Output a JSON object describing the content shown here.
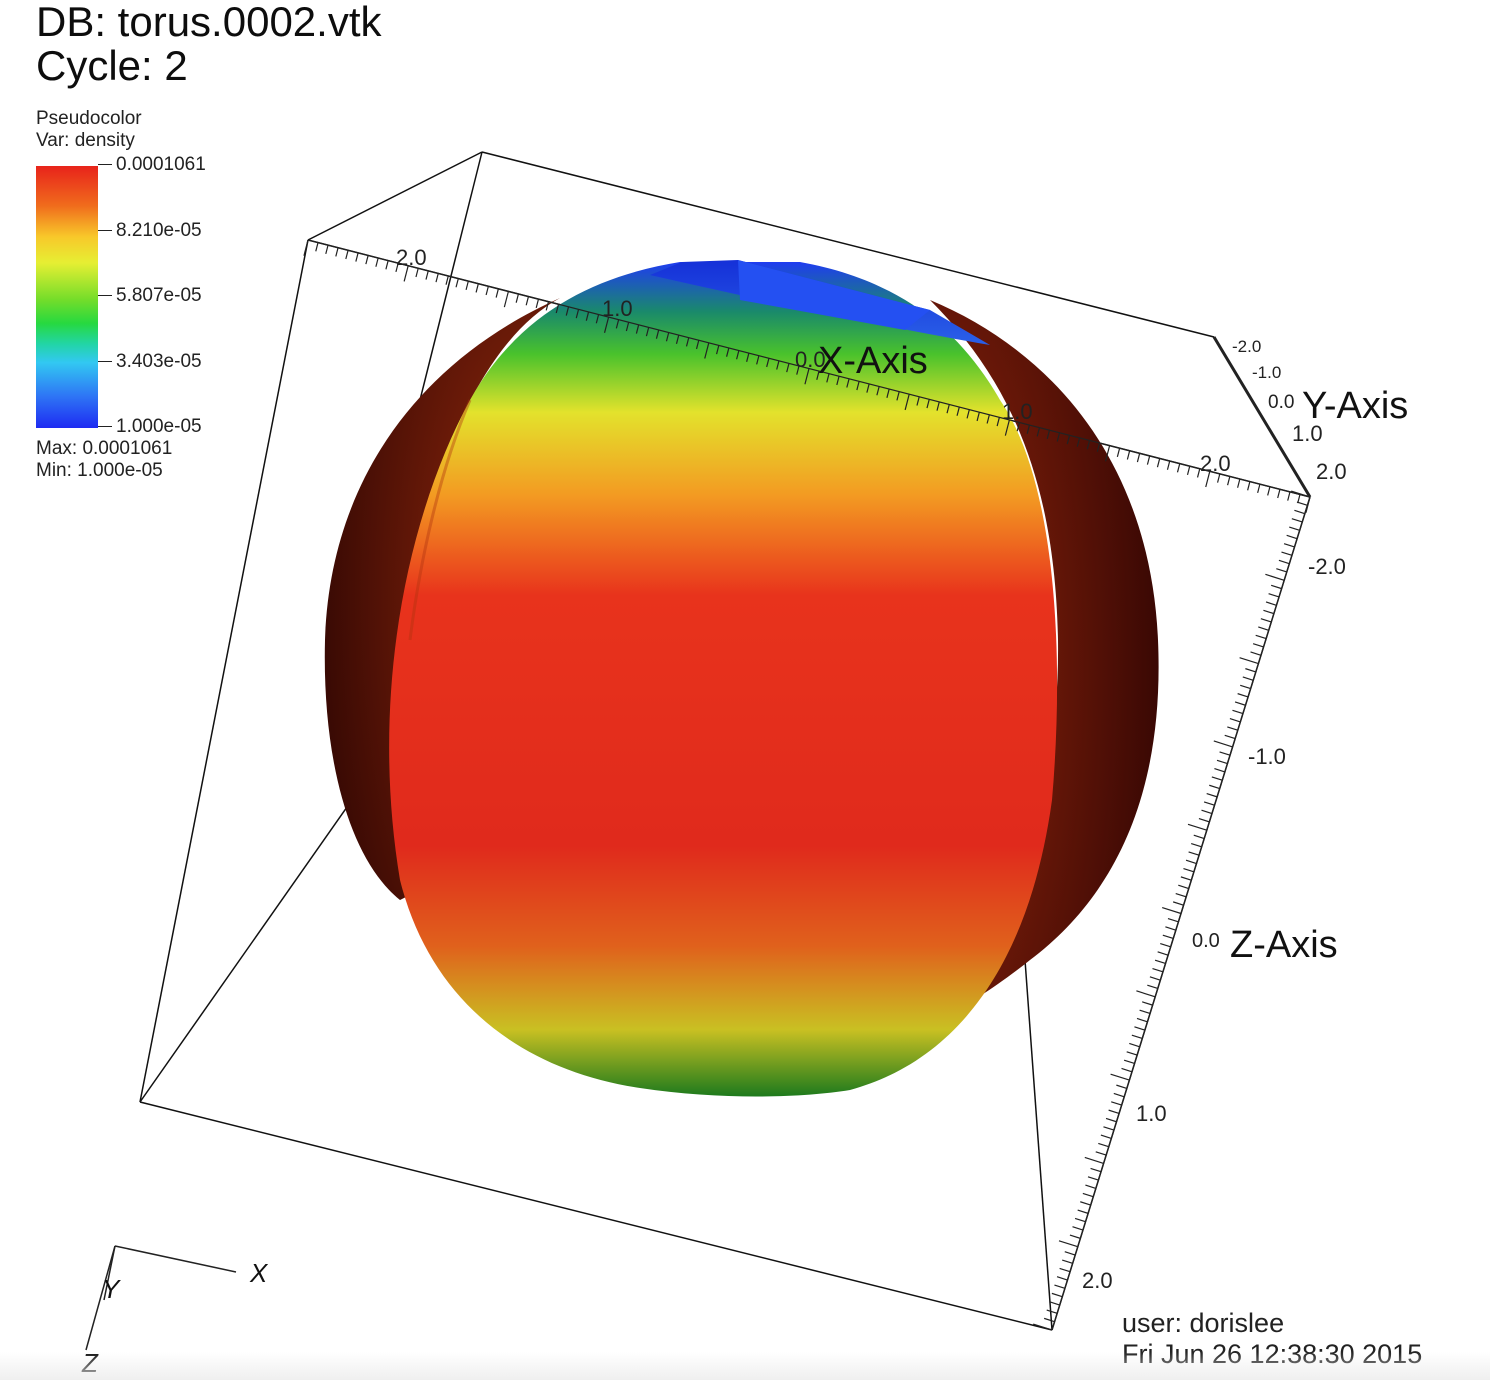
{
  "header": {
    "db_line": "DB: torus.0002.vtk",
    "cycle_line": "Cycle: 2"
  },
  "legend": {
    "plot_type": "Pseudocolor",
    "variable": "Var: density",
    "ticks": [
      "0.0001061",
      "8.210e-05",
      "5.807e-05",
      "3.403e-05",
      "1.000e-05"
    ],
    "max": "Max: 0.0001061",
    "min": "Min: 1.000e-05",
    "colormap": [
      "#e8231b",
      "#f8c82a",
      "#e6ef33",
      "#27d93f",
      "#32c8f2",
      "#1e2bf2"
    ]
  },
  "axes": {
    "x_title": "X-Axis",
    "y_title": "Y-Axis",
    "z_title": "Z-Axis",
    "x_labels": [
      "2.0",
      "1.0",
      "0.0",
      "1.0",
      "2.0"
    ],
    "y_labels": [
      "-2.0",
      "-1.0",
      "0.0",
      "1.0",
      "2.0"
    ],
    "z_labels": [
      "-2.0",
      "-1.0",
      "0.0",
      "1.0",
      "2.0"
    ]
  },
  "triad": {
    "x": "X",
    "y": "Y",
    "z": "Z"
  },
  "footer": {
    "user": "user: dorislee",
    "date": "Fri Jun 26 12:38:30 2015"
  }
}
